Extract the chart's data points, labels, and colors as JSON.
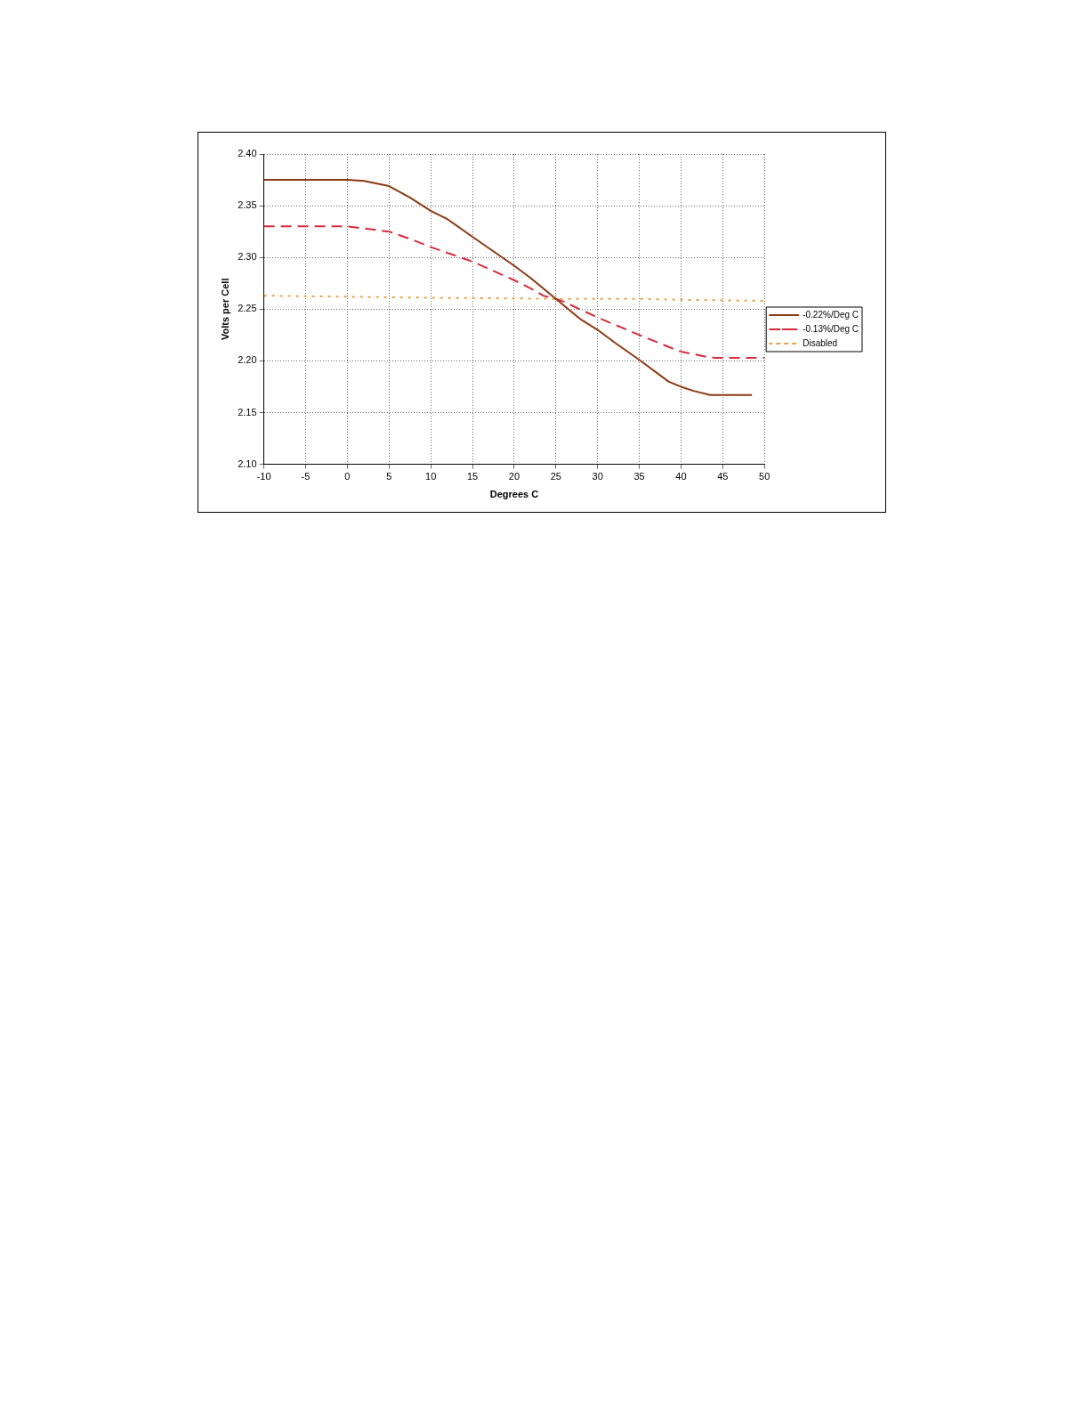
{
  "chart_data": {
    "type": "line",
    "xlabel": "Degrees C",
    "ylabel": "Volts per Cell",
    "xlim": [
      -10,
      50
    ],
    "xticks": [
      -10,
      -5,
      0,
      5,
      10,
      15,
      20,
      25,
      30,
      35,
      40,
      45,
      50
    ],
    "ylim": [
      2.1,
      2.4
    ],
    "yticks": [
      {
        "value": 2.1,
        "label": "2.10"
      },
      {
        "value": 2.15,
        "label": "2.15"
      },
      {
        "value": 2.2,
        "label": "2.20"
      },
      {
        "value": 2.25,
        "label": "2.25"
      },
      {
        "value": 2.3,
        "label": "2.30"
      },
      {
        "value": 2.35,
        "label": "2.35"
      },
      {
        "value": 2.4,
        "label": "2.40"
      }
    ],
    "grid": true,
    "legend": "right",
    "marker": "none",
    "series": [
      {
        "name": "-0.22%/Deg C",
        "color": "#8b3a12",
        "line_style": "solid",
        "x": [
          -10,
          -5,
          0,
          2,
          5,
          7.5,
          10,
          12,
          15,
          20,
          22,
          25,
          28,
          30,
          32,
          35,
          38.5,
          40,
          41.5,
          43.5,
          48.5
        ],
        "values": [
          2.375,
          2.375,
          2.375,
          2.374,
          2.369,
          2.358,
          2.345,
          2.337,
          2.32,
          2.292,
          2.28,
          2.26,
          2.24,
          2.23,
          2.218,
          2.201,
          2.18,
          2.175,
          2.171,
          2.167,
          2.167
        ]
      },
      {
        "name": "-0.13%/Deg C",
        "color": "#d62b3a",
        "line_style": "dashed",
        "x": [
          -10,
          -5,
          0,
          5,
          7.5,
          10,
          15,
          20,
          22,
          23.5,
          25,
          26,
          30,
          35,
          39,
          40,
          43,
          44,
          50
        ],
        "values": [
          2.33,
          2.33,
          2.33,
          2.325,
          2.318,
          2.31,
          2.296,
          2.278,
          2.27,
          2.263,
          2.26,
          2.257,
          2.242,
          2.225,
          2.212,
          2.209,
          2.204,
          2.203,
          2.203
        ]
      },
      {
        "name": "Disabled",
        "color": "#e8a048",
        "line_style": "dotted",
        "x": [
          -10,
          0,
          10,
          25,
          35,
          40,
          50
        ],
        "values": [
          2.263,
          2.262,
          2.261,
          2.26,
          2.26,
          2.259,
          2.258
        ]
      }
    ]
  }
}
